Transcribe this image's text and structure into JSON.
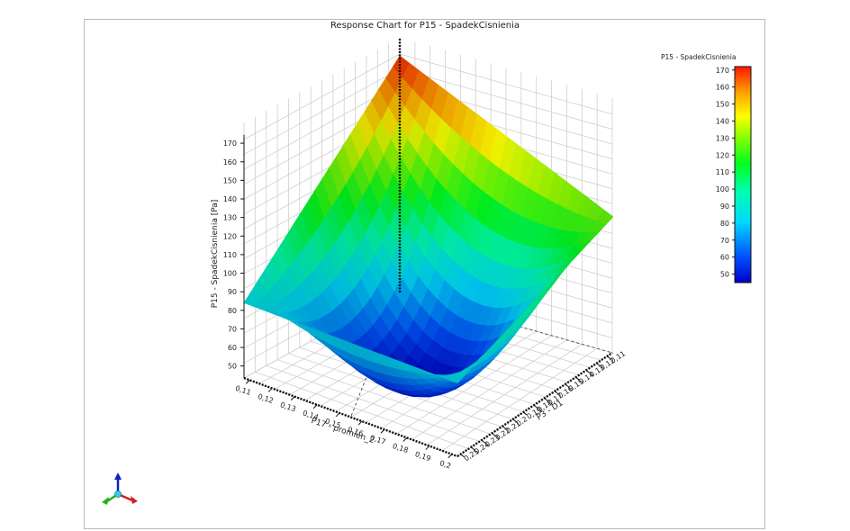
{
  "chart_data": {
    "type": "surface",
    "title": "Response Chart for P15 - SpadekCisnienia",
    "zlabel": "P15 - SpadekCisnienia  [Pa]",
    "xlabel": "P17 - promien_2",
    "ylabel": "P3 - D1",
    "x_ticks": [
      "0,11",
      "0,12",
      "0,13",
      "0,14",
      "0,15",
      "0,16",
      "0,17",
      "0,18",
      "0,19",
      "0,2"
    ],
    "y_ticks": [
      "0,25",
      "0,24",
      "0,23",
      "0,22",
      "0,21",
      "0,2",
      "0,19",
      "0,18",
      "0,17",
      "0,16",
      "0,15",
      "0,14",
      "0,13",
      "0,12",
      "0,11"
    ],
    "z_ticks": [
      "50",
      "60",
      "70",
      "80",
      "90",
      "100",
      "110",
      "120",
      "130",
      "140",
      "150",
      "160",
      "170"
    ],
    "xlim": [
      0.11,
      0.2
    ],
    "ylim": [
      0.11,
      0.25
    ],
    "zlim": [
      45,
      172
    ],
    "corner_values": {
      "x_min_y_min": 171,
      "x_min_y_max": 85,
      "x_max_y_min": 127,
      "x_max_y_max": 84,
      "center": 47
    },
    "min_point": {
      "x": 0.17,
      "y": 0.2,
      "z": 45
    },
    "legend": {
      "title": "P15 - SpadekCisnienia",
      "ticks": [
        "50",
        "60",
        "70",
        "80",
        "90",
        "100",
        "110",
        "120",
        "130",
        "140",
        "150",
        "160",
        "170"
      ],
      "range": [
        45,
        172
      ],
      "placement": "right"
    },
    "colormap": [
      "#0000b0",
      "#0030ff",
      "#00c8ff",
      "#00ffd0",
      "#00ff00",
      "#b0ff00",
      "#ffff00",
      "#ffb000",
      "#ff2000"
    ],
    "grid": true
  }
}
